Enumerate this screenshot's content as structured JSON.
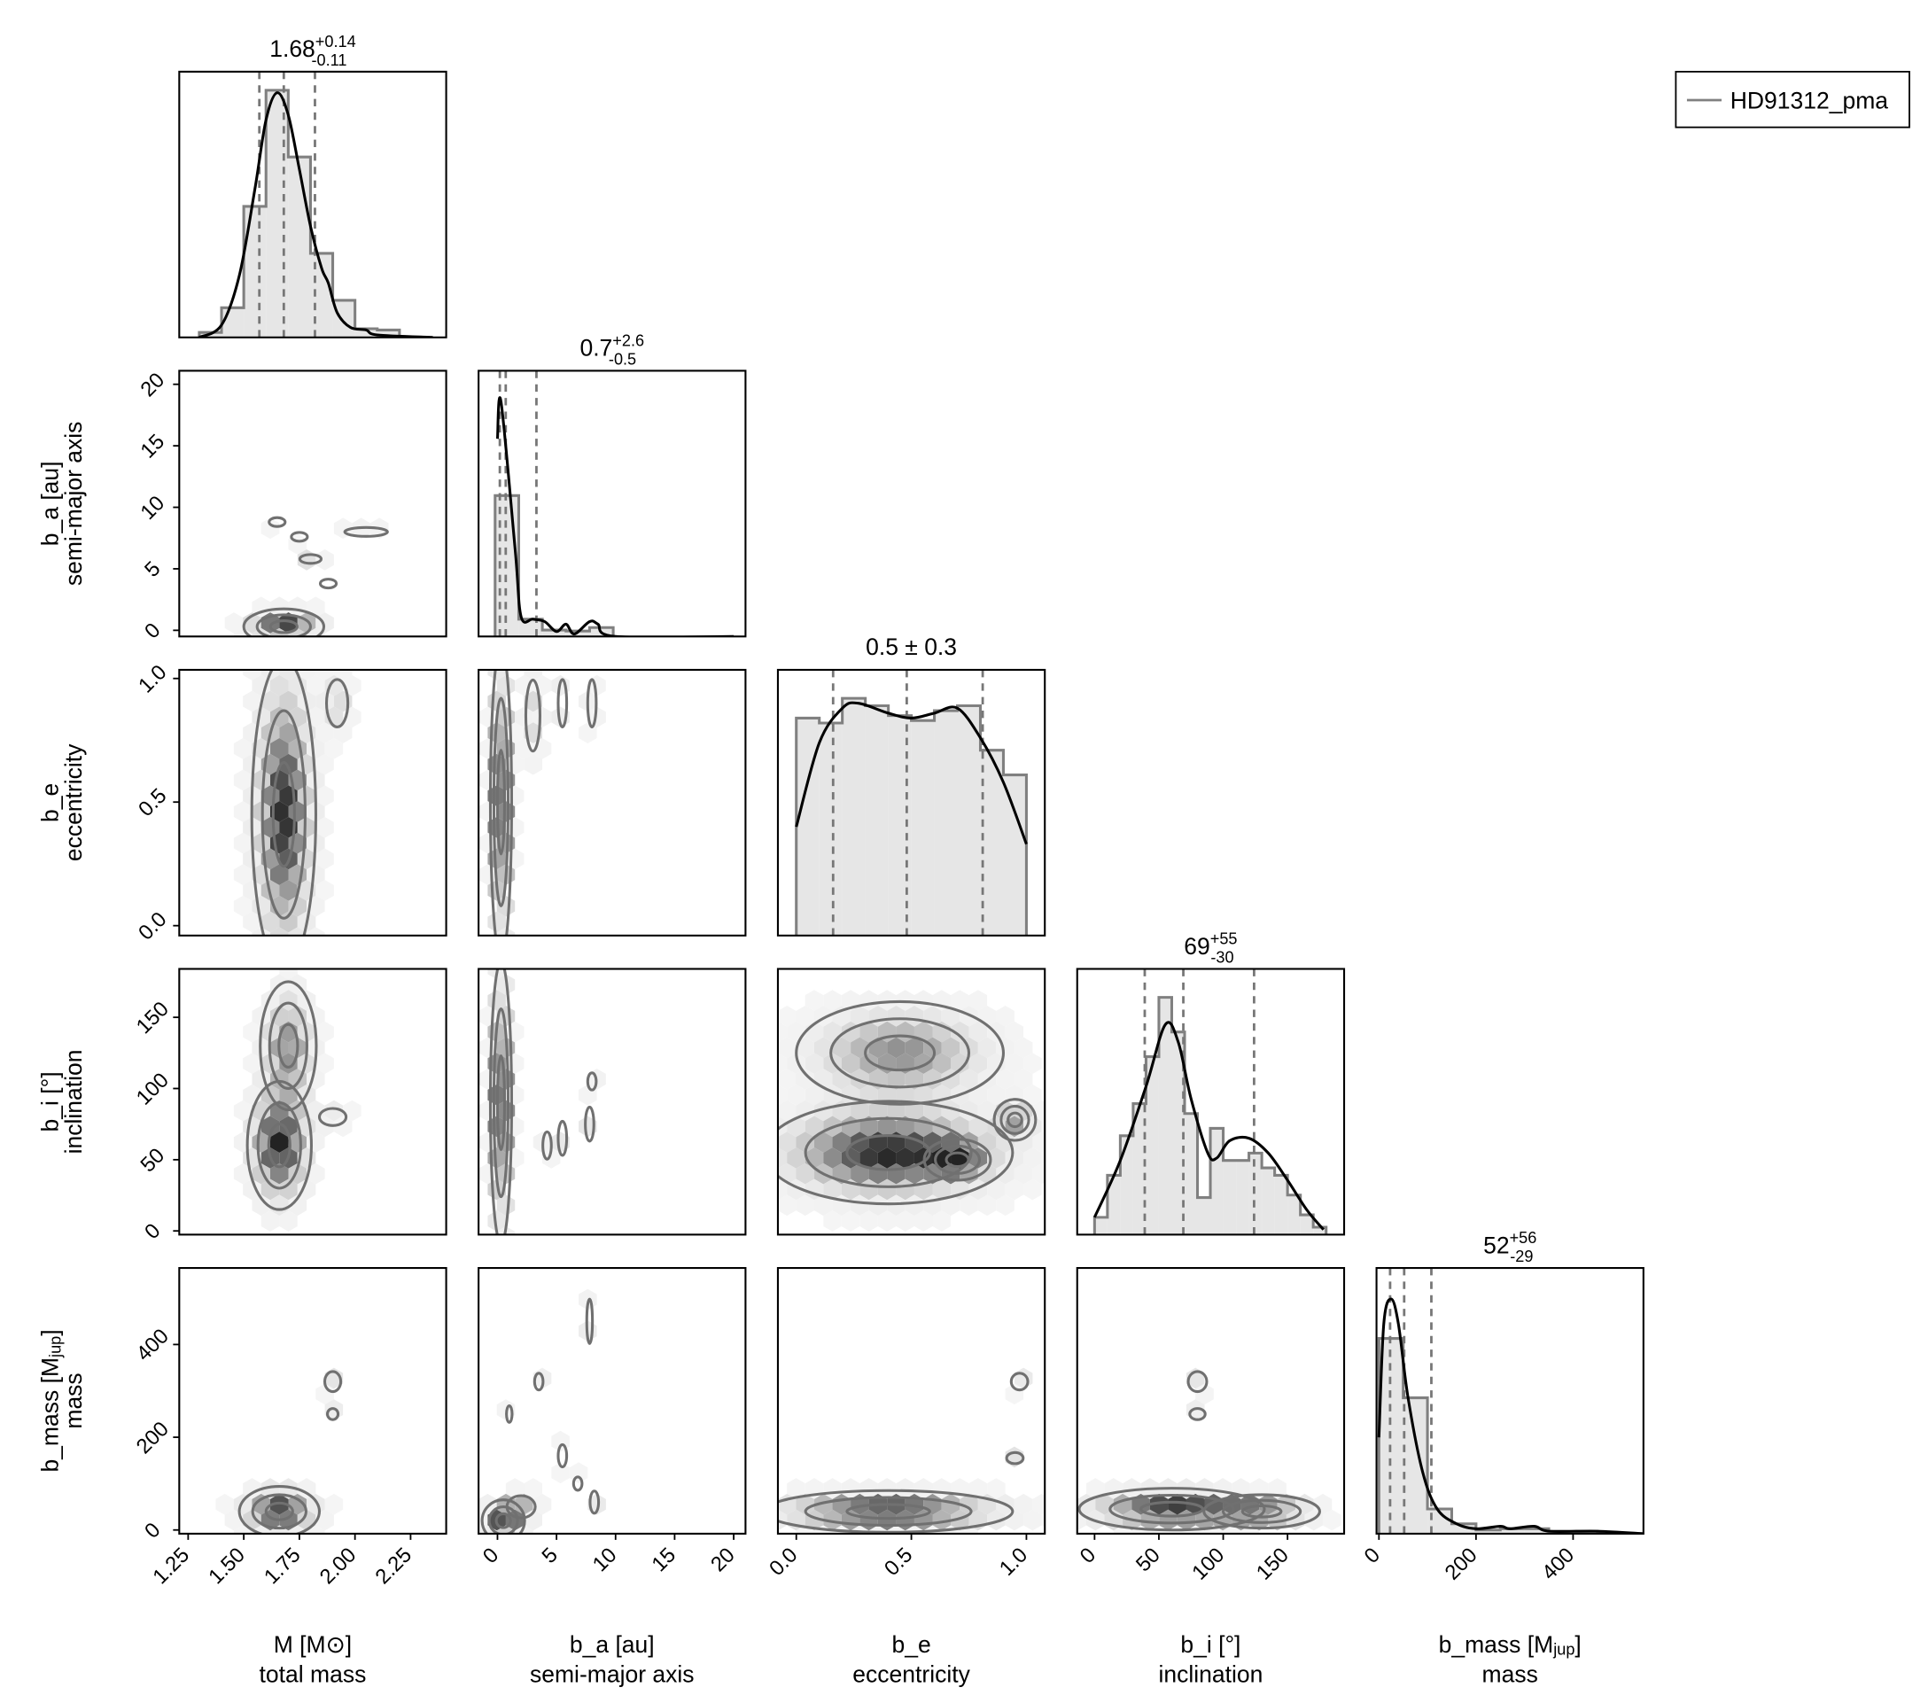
{
  "chart_data": {
    "type": "corner",
    "legend": {
      "label": "HD91312_pma",
      "position": "top-right",
      "line_color": "#808080"
    },
    "colors": {
      "hist_fill": "#e6e6e6",
      "hist_edge": "#808080",
      "kde": "#000000",
      "quantile": "#777777",
      "contour": "#707070",
      "hex_dark": "#222222"
    },
    "variables": [
      {
        "key": "M",
        "label": "M [M⊙]",
        "sublabel": "total mass",
        "lim": [
          1.21,
          2.41
        ],
        "ticks": [
          1.25,
          1.5,
          1.75,
          2.0,
          2.25
        ],
        "tick_labels": [
          "1.25",
          "1.50",
          "1.75",
          "2.00",
          "2.25"
        ],
        "title": {
          "value": "1.68",
          "plus": "+0.14",
          "minus": "-0.11"
        },
        "quantiles": [
          1.57,
          1.68,
          1.82
        ],
        "hist": {
          "edges": [
            1.3,
            1.4,
            1.5,
            1.6,
            1.7,
            1.8,
            1.9,
            2.0,
            2.1,
            2.2
          ],
          "heights": [
            0.02,
            0.12,
            0.53,
            1.0,
            0.73,
            0.34,
            0.15,
            0.035,
            0.03
          ]
        },
        "kde": [
          [
            1.3,
            0
          ],
          [
            1.4,
            0.05
          ],
          [
            1.48,
            0.25
          ],
          [
            1.55,
            0.6
          ],
          [
            1.6,
            0.88
          ],
          [
            1.65,
            0.99
          ],
          [
            1.7,
            0.9
          ],
          [
            1.75,
            0.68
          ],
          [
            1.8,
            0.45
          ],
          [
            1.85,
            0.28
          ],
          [
            1.88,
            0.22
          ],
          [
            1.92,
            0.1
          ],
          [
            1.98,
            0.04
          ],
          [
            2.05,
            0.03
          ],
          [
            2.1,
            0.01
          ],
          [
            2.35,
            0
          ]
        ]
      },
      {
        "key": "b_a",
        "label": "b_a [au]",
        "sublabel": "semi-major axis",
        "lim": [
          -1.6,
          21.0
        ],
        "ticks": [
          0,
          5,
          10,
          15,
          20
        ],
        "tick_labels": [
          "0",
          "5",
          "10",
          "15",
          "20"
        ],
        "title": {
          "value": "0.7",
          "plus": "+2.6",
          "minus": "-0.5"
        },
        "quantiles": [
          0.2,
          0.7,
          3.3
        ],
        "hist": {
          "edges": [
            -0.2,
            1.8,
            3.8,
            5.8,
            7.8,
            9.8
          ],
          "heights": [
            0.57,
            0.07,
            0.026,
            0.022,
            0.036
          ]
        },
        "kde": [
          [
            0,
            0.8
          ],
          [
            0.3,
            0.95
          ],
          [
            1.5,
            0.35
          ],
          [
            2,
            0.08
          ],
          [
            3,
            0.07
          ],
          [
            4,
            0.06
          ],
          [
            5,
            0.02
          ],
          [
            5.8,
            0.05
          ],
          [
            6.5,
            0.01
          ],
          [
            7.8,
            0.06
          ],
          [
            8.5,
            0.05
          ],
          [
            10,
            0
          ],
          [
            20,
            0
          ]
        ]
      },
      {
        "key": "b_e",
        "label": "b_e",
        "sublabel": "eccentricity",
        "lim": [
          -0.08,
          1.08
        ],
        "ticks": [
          0.0,
          0.5,
          1.0
        ],
        "tick_labels": [
          "0.0",
          "0.5",
          "1.0"
        ],
        "title": {
          "value": "0.5 ± 0.3"
        },
        "quantiles": [
          0.16,
          0.48,
          0.81
        ],
        "hist": {
          "edges": [
            0,
            0.1,
            0.2,
            0.3,
            0.4,
            0.5,
            0.6,
            0.7,
            0.8,
            0.9,
            1.0
          ],
          "heights": [
            0.88,
            0.86,
            0.96,
            0.93,
            0.89,
            0.87,
            0.91,
            0.93,
            0.75,
            0.65
          ]
        },
        "kde": [
          [
            0,
            0.44
          ],
          [
            0.1,
            0.78
          ],
          [
            0.2,
            0.92
          ],
          [
            0.27,
            0.94
          ],
          [
            0.4,
            0.9
          ],
          [
            0.5,
            0.88
          ],
          [
            0.6,
            0.9
          ],
          [
            0.7,
            0.92
          ],
          [
            0.8,
            0.8
          ],
          [
            0.9,
            0.62
          ],
          [
            1.0,
            0.37
          ]
        ]
      },
      {
        "key": "b_i",
        "label": "b_i [°]",
        "sublabel": "inclination",
        "lim": [
          -13.5,
          194
        ],
        "ticks": [
          0,
          50,
          100,
          150
        ],
        "tick_labels": [
          "0",
          "50",
          "100",
          "150"
        ],
        "title": {
          "value": "69",
          "plus": "+55",
          "minus": "-30"
        },
        "quantiles": [
          39,
          69,
          124
        ],
        "hist": {
          "edges": [
            0,
            10,
            20,
            30,
            40,
            50,
            60,
            70,
            80,
            90,
            100,
            110,
            120,
            130,
            140,
            150,
            160,
            170,
            180
          ],
          "heights": [
            0.07,
            0.24,
            0.4,
            0.53,
            0.72,
            0.96,
            0.82,
            0.49,
            0.15,
            0.43,
            0.3,
            0.3,
            0.33,
            0.27,
            0.24,
            0.16,
            0.08,
            0.03
          ]
        },
        "kde": [
          [
            0,
            0.07
          ],
          [
            20,
            0.3
          ],
          [
            40,
            0.6
          ],
          [
            55,
            0.85
          ],
          [
            65,
            0.78
          ],
          [
            75,
            0.55
          ],
          [
            88,
            0.33
          ],
          [
            95,
            0.31
          ],
          [
            105,
            0.38
          ],
          [
            120,
            0.39
          ],
          [
            135,
            0.33
          ],
          [
            150,
            0.22
          ],
          [
            165,
            0.1
          ],
          [
            178,
            0.02
          ]
        ]
      },
      {
        "key": "b_mass",
        "label": "b_mass [M",
        "label_sub": "jup",
        "label_end": "]",
        "sublabel": "mass",
        "lim": [
          -5,
          545
        ],
        "ticks": [
          0,
          200,
          400
        ],
        "tick_labels": [
          "0",
          "200",
          "400"
        ],
        "title": {
          "value": "52",
          "plus": "+56",
          "minus": "-29"
        },
        "quantiles": [
          23,
          52,
          108
        ],
        "hist": {
          "edges": [
            0,
            50,
            100,
            150,
            200,
            250,
            300,
            350,
            400,
            450,
            500
          ],
          "heights": [
            0.79,
            0.55,
            0.1,
            0.04,
            0.015,
            0.02,
            0.02,
            0.01,
            0.01,
            0.005
          ]
        },
        "kde": [
          [
            0,
            0.39
          ],
          [
            10,
            0.85
          ],
          [
            25,
            0.95
          ],
          [
            40,
            0.85
          ],
          [
            60,
            0.55
          ],
          [
            90,
            0.25
          ],
          [
            120,
            0.1
          ],
          [
            160,
            0.04
          ],
          [
            200,
            0.02
          ],
          [
            250,
            0.03
          ],
          [
            270,
            0.02
          ],
          [
            320,
            0.03
          ],
          [
            350,
            0.01
          ],
          [
            450,
            0.01
          ],
          [
            545,
            0
          ]
        ]
      }
    ],
    "ylims": {
      "b_a": [
        -0.5,
        21.1
      ],
      "b_e": [
        -0.04,
        1.035
      ],
      "b_i": [
        -2.6,
        184
      ],
      "b_mass": [
        -8,
        565
      ]
    },
    "pairs": [
      {
        "x": "M",
        "y": "b_a",
        "density_modes": [
          [
            1.68,
            0.3,
            0.1,
            0.8,
            1
          ],
          [
            1.65,
            8.8,
            0.03,
            0.3,
            0.3
          ],
          [
            1.75,
            7.6,
            0.03,
            0.3,
            0.3
          ],
          [
            1.8,
            5.8,
            0.04,
            0.3,
            0.35
          ],
          [
            1.88,
            3.8,
            0.03,
            0.3,
            0.3
          ],
          [
            2.05,
            8.0,
            0.08,
            0.3,
            0.2
          ]
        ]
      },
      {
        "x": "M",
        "y": "b_e",
        "density_modes": [
          [
            1.68,
            0.45,
            0.08,
            0.35,
            1
          ],
          [
            1.92,
            0.9,
            0.04,
            0.08,
            0.4
          ]
        ]
      },
      {
        "x": "b_a",
        "y": "b_e",
        "density_modes": [
          [
            0.3,
            0.5,
            0.5,
            0.35,
            1
          ],
          [
            3,
            0.85,
            0.5,
            0.12,
            0.4
          ],
          [
            5.5,
            0.9,
            0.3,
            0.08,
            0.3
          ],
          [
            8,
            0.9,
            0.3,
            0.08,
            0.3
          ]
        ]
      },
      {
        "x": "M",
        "y": "b_i",
        "density_modes": [
          [
            1.66,
            60,
            0.08,
            25,
            1
          ],
          [
            1.7,
            130,
            0.07,
            25,
            0.7
          ],
          [
            1.9,
            80,
            0.05,
            5,
            0.3
          ]
        ]
      },
      {
        "x": "b_a",
        "y": "b_i",
        "density_modes": [
          [
            0.3,
            90,
            0.5,
            55,
            1
          ],
          [
            4.2,
            60,
            0.3,
            8,
            0.3
          ],
          [
            5.5,
            65,
            0.3,
            10,
            0.3
          ],
          [
            7.8,
            75,
            0.3,
            10,
            0.3
          ],
          [
            8,
            105,
            0.3,
            5,
            0.3
          ]
        ]
      },
      {
        "x": "b_e",
        "y": "b_i",
        "density_modes": [
          [
            0.4,
            55,
            0.3,
            20,
            1
          ],
          [
            0.45,
            125,
            0.25,
            20,
            0.7
          ],
          [
            0.7,
            50,
            0.08,
            8,
            0.6
          ],
          [
            0.95,
            78,
            0.05,
            8,
            0.6
          ]
        ]
      },
      {
        "x": "M",
        "y": "b_mass",
        "density_modes": [
          [
            1.66,
            40,
            0.1,
            30,
            1
          ],
          [
            1.9,
            320,
            0.03,
            18,
            0.3
          ],
          [
            1.9,
            250,
            0.02,
            10,
            0.3
          ]
        ]
      },
      {
        "x": "b_a",
        "y": "b_mass",
        "density_modes": [
          [
            0.5,
            20,
            1,
            25,
            1
          ],
          [
            2,
            50,
            1,
            20,
            0.5
          ],
          [
            1,
            250,
            0.2,
            15,
            0.3
          ],
          [
            3.5,
            320,
            0.3,
            15,
            0.3
          ],
          [
            5.5,
            160,
            0.3,
            20,
            0.3
          ],
          [
            7.8,
            450,
            0.2,
            40,
            0.3
          ],
          [
            8.2,
            60,
            0.3,
            20,
            0.3
          ],
          [
            6.8,
            100,
            0.3,
            12,
            0.3
          ]
        ]
      },
      {
        "x": "b_e",
        "y": "b_mass",
        "density_modes": [
          [
            0.4,
            40,
            0.3,
            25,
            1
          ],
          [
            0.97,
            320,
            0.03,
            15,
            0.3
          ],
          [
            0.95,
            155,
            0.03,
            10,
            0.3
          ]
        ]
      },
      {
        "x": "b_i",
        "y": "b_mass",
        "density_modes": [
          [
            60,
            45,
            40,
            25,
            1
          ],
          [
            130,
            40,
            25,
            20,
            0.7
          ],
          [
            80,
            320,
            6,
            18,
            0.3
          ],
          [
            80,
            250,
            5,
            10,
            0.3
          ]
        ]
      }
    ]
  }
}
